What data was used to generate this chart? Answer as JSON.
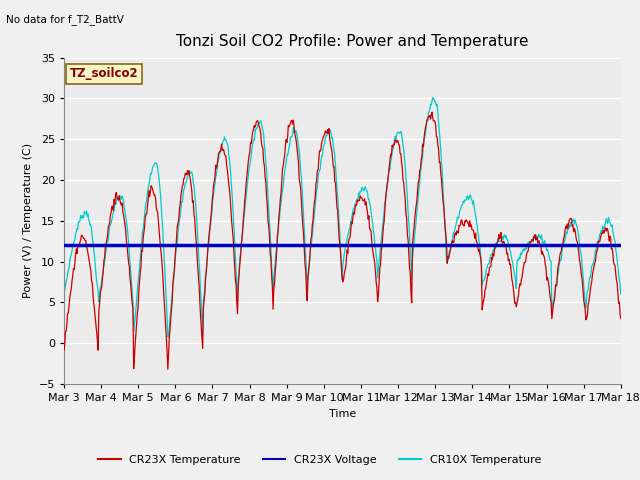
{
  "title": "Tonzi Soil CO2 Profile: Power and Temperature",
  "subtitle": "No data for f_T2_BattV",
  "ylabel": "Power (V) / Temperature (C)",
  "xlabel": "Time",
  "ylim": [
    -5,
    35
  ],
  "yticks": [
    -5,
    0,
    5,
    10,
    15,
    20,
    25,
    30,
    35
  ],
  "xtick_labels": [
    "Mar 3",
    "Mar 4",
    "Mar 5",
    "Mar 6",
    "Mar 7",
    "Mar 8",
    "Mar 9",
    "Mar 10",
    "Mar 11",
    "Mar 12",
    "Mar 13",
    "Mar 14",
    "Mar 15",
    "Mar 16",
    "Mar 17",
    "Mar 18"
  ],
  "voltage_value": 12.0,
  "legend_label_box": "TZ_soilco2",
  "legend_entries": [
    "CR23X Temperature",
    "CR23X Voltage",
    "CR10X Temperature"
  ],
  "legend_colors": [
    "#cc0000",
    "#0000bb",
    "#00cccc"
  ],
  "bg_color": "#ebebeb",
  "plot_bg_color": "#ebebeb",
  "grid_color": "#ffffff",
  "cr23x_temp_color": "#cc0000",
  "cr10x_temp_color": "#00cccc",
  "voltage_color": "#0000bb",
  "title_fontsize": 11,
  "label_fontsize": 8,
  "tick_fontsize": 8
}
